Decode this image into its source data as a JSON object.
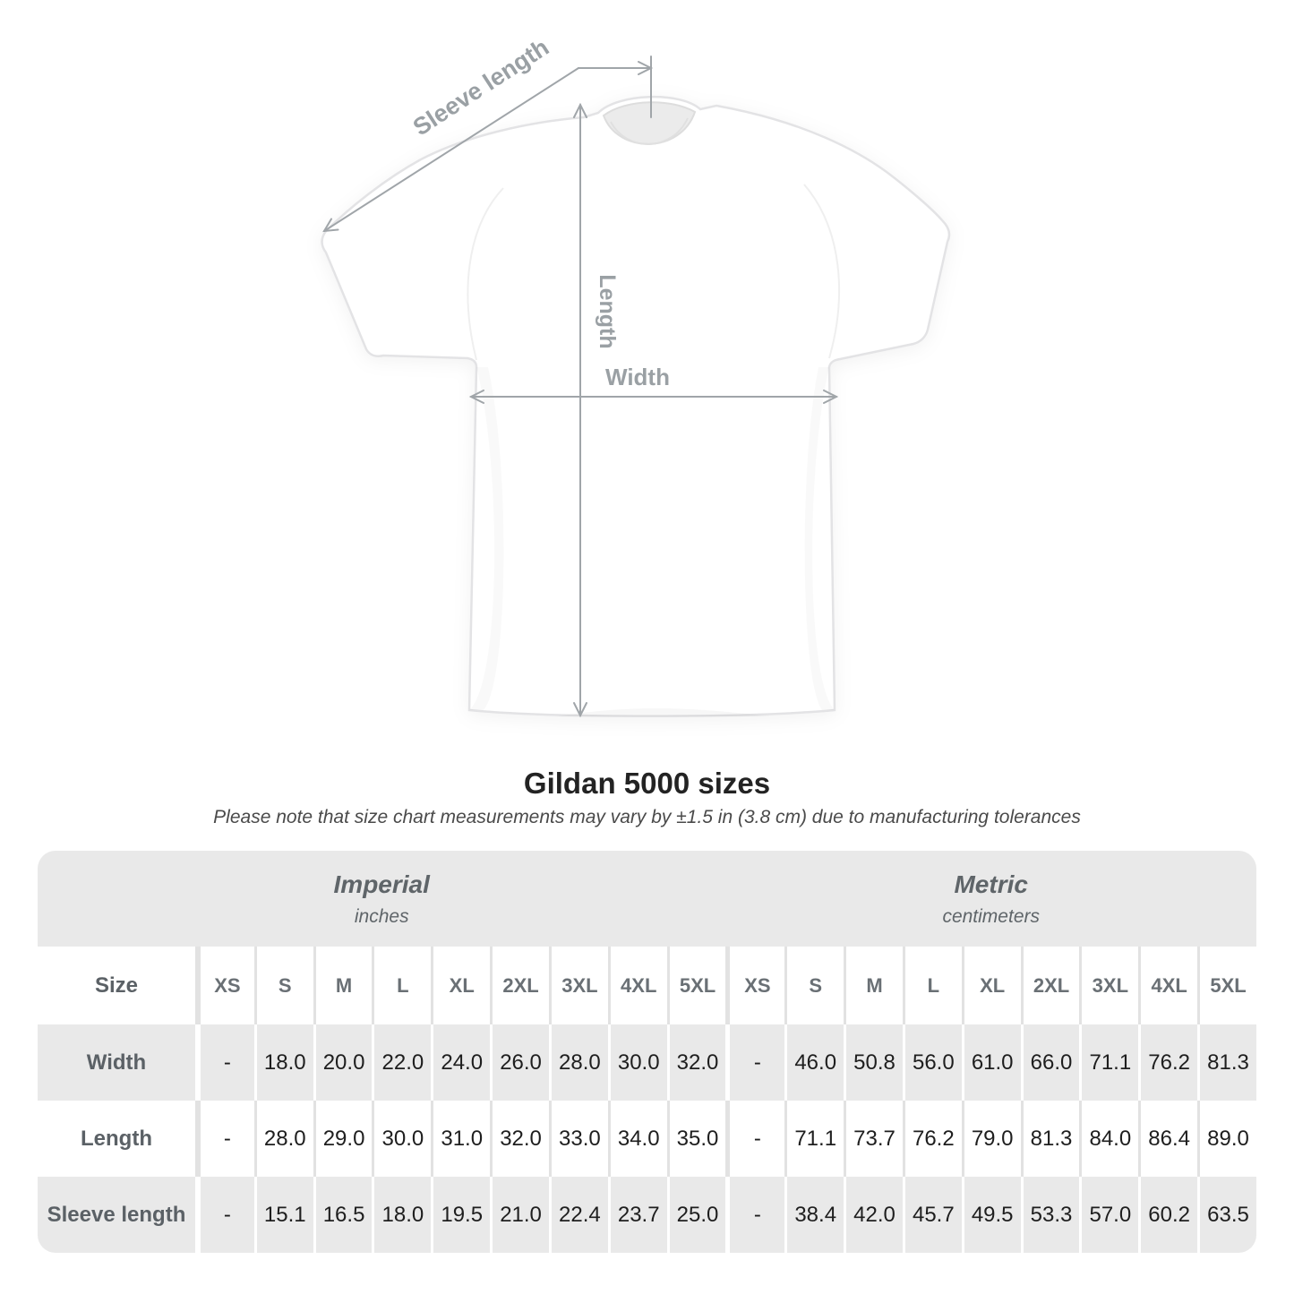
{
  "title": "Gildan 5000 sizes",
  "subtitle": "Please note that size chart measurements may vary by ±1.5 in (3.8 cm) due to manufacturing tolerances",
  "diagram": {
    "sleeve_length_label": "Sleeve length",
    "length_label": "Length",
    "width_label": "Width"
  },
  "table": {
    "size_label": "Size",
    "unit_groups": [
      {
        "name": "Imperial",
        "unit": "inches"
      },
      {
        "name": "Metric",
        "unit": "centimeters"
      }
    ],
    "sizes": [
      "XS",
      "S",
      "M",
      "L",
      "XL",
      "2XL",
      "3XL",
      "4XL",
      "5XL"
    ],
    "rows": [
      {
        "label": "Width",
        "imperial": [
          "-",
          "18.0",
          "20.0",
          "22.0",
          "24.0",
          "26.0",
          "28.0",
          "30.0",
          "32.0"
        ],
        "metric": [
          "-",
          "46.0",
          "50.8",
          "56.0",
          "61.0",
          "66.0",
          "71.1",
          "76.2",
          "81.3"
        ]
      },
      {
        "label": "Length",
        "imperial": [
          "-",
          "28.0",
          "29.0",
          "30.0",
          "31.0",
          "32.0",
          "33.0",
          "34.0",
          "35.0"
        ],
        "metric": [
          "-",
          "71.1",
          "73.7",
          "76.2",
          "79.0",
          "81.3",
          "84.0",
          "86.4",
          "89.0"
        ]
      },
      {
        "label": "Sleeve length",
        "imperial": [
          "-",
          "15.1",
          "16.5",
          "18.0",
          "19.5",
          "21.0",
          "22.4",
          "23.7",
          "25.0"
        ],
        "metric": [
          "-",
          "38.4",
          "42.0",
          "45.7",
          "49.5",
          "53.3",
          "57.0",
          "60.2",
          "63.5"
        ]
      }
    ]
  },
  "chart_data": {
    "type": "table",
    "title": "Gildan 5000 sizes",
    "note": "Please note that size chart measurements may vary by ±1.5 in (3.8 cm) due to manufacturing tolerances",
    "column_groups": [
      "Imperial (inches)",
      "Metric (centimeters)"
    ],
    "columns": [
      "XS",
      "S",
      "M",
      "L",
      "XL",
      "2XL",
      "3XL",
      "4XL",
      "5XL"
    ],
    "rows": [
      {
        "measurement": "Width",
        "imperial_inches": [
          null,
          18.0,
          20.0,
          22.0,
          24.0,
          26.0,
          28.0,
          30.0,
          32.0
        ],
        "metric_cm": [
          null,
          46.0,
          50.8,
          56.0,
          61.0,
          66.0,
          71.1,
          76.2,
          81.3
        ]
      },
      {
        "measurement": "Length",
        "imperial_inches": [
          null,
          28.0,
          29.0,
          30.0,
          31.0,
          32.0,
          33.0,
          34.0,
          35.0
        ],
        "metric_cm": [
          null,
          71.1,
          73.7,
          76.2,
          79.0,
          81.3,
          84.0,
          86.4,
          89.0
        ]
      },
      {
        "measurement": "Sleeve length",
        "imperial_inches": [
          null,
          15.1,
          16.5,
          18.0,
          19.5,
          21.0,
          22.4,
          23.7,
          25.0
        ],
        "metric_cm": [
          null,
          38.4,
          42.0,
          45.7,
          49.5,
          53.3,
          57.0,
          60.2,
          63.5
        ]
      }
    ]
  },
  "colors": {
    "stripe_gray": "#e9e9e9",
    "separator_on_white": "#e2e2e2",
    "number_text": "#1e1e1e",
    "muted_label_text": "#5b6166",
    "diagram_gray": "#9aa0a4"
  }
}
